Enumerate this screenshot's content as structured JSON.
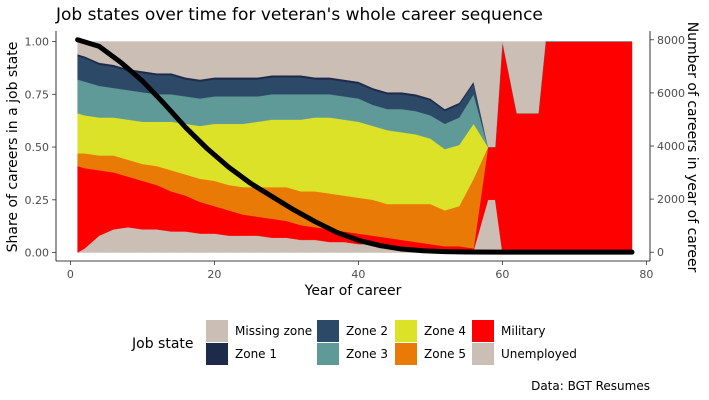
{
  "chart_data": {
    "type": "area",
    "title": "Job states over time for veteran's whole career sequence",
    "xlabel": "Year of career",
    "ylabel": "Share of careers in a job state",
    "y2label": "Number of careers in year of career",
    "caption": "Data: BGT Resumes",
    "xlim": [
      -2,
      80.5
    ],
    "ylim": [
      -0.04,
      1.05
    ],
    "y2lim": [
      -330,
      8330
    ],
    "x_ticks": [
      0,
      20,
      40,
      60,
      80
    ],
    "y_ticks": [
      0.0,
      0.25,
      0.5,
      0.75,
      1.0
    ],
    "y_tick_labels": [
      "0.00",
      "0.25",
      "0.50",
      "0.75",
      "1.00"
    ],
    "y2_ticks": [
      0,
      2000,
      4000,
      6000,
      8000
    ],
    "grid": false,
    "legend_position": "bottom",
    "legend": {
      "title": "Job state",
      "entries": [
        {
          "label": "Missing zone",
          "color": "#cbbfb5"
        },
        {
          "label": "Zone 1",
          "color": "#1e2a4a"
        },
        {
          "label": "Zone 2",
          "color": "#2c4a68"
        },
        {
          "label": "Zone 3",
          "color": "#5f9a99"
        },
        {
          "label": "Zone 4",
          "color": "#dbe228"
        },
        {
          "label": "Zone 5",
          "color": "#e87a05"
        },
        {
          "label": "Military",
          "color": "#ff0000"
        },
        {
          "label": "Unemployed",
          "color": "#cbbfb5"
        }
      ]
    },
    "x": [
      1,
      2,
      4,
      6,
      8,
      10,
      12,
      14,
      16,
      18,
      20,
      22,
      24,
      26,
      28,
      30,
      32,
      34,
      36,
      38,
      40,
      42,
      44,
      46,
      48,
      50,
      52,
      54,
      56,
      58,
      59,
      60,
      62,
      65,
      66,
      70,
      75,
      78
    ],
    "stacked_series": [
      {
        "name": "Unemployed",
        "color": "#cbbfb5",
        "values": [
          0.0,
          0.02,
          0.08,
          0.11,
          0.12,
          0.11,
          0.11,
          0.1,
          0.1,
          0.09,
          0.09,
          0.08,
          0.08,
          0.08,
          0.07,
          0.07,
          0.06,
          0.06,
          0.05,
          0.05,
          0.04,
          0.04,
          0.03,
          0.03,
          0.02,
          0.02,
          0.01,
          0.01,
          0.01,
          0.25,
          0.25,
          0.0,
          0.0,
          0.0,
          0.0,
          0.0,
          0.0,
          0.0
        ]
      },
      {
        "name": "Military",
        "color": "#ff0000",
        "values": [
          0.41,
          0.38,
          0.31,
          0.27,
          0.24,
          0.23,
          0.21,
          0.19,
          0.17,
          0.15,
          0.13,
          0.12,
          0.1,
          0.09,
          0.09,
          0.08,
          0.07,
          0.06,
          0.06,
          0.05,
          0.05,
          0.04,
          0.04,
          0.03,
          0.03,
          0.02,
          0.02,
          0.02,
          0.01,
          0.25,
          0.25,
          1.0,
          0.66,
          0.66,
          1.0,
          1.0,
          1.0,
          1.0
        ]
      },
      {
        "name": "Zone 5",
        "color": "#e87a05",
        "values": [
          0.06,
          0.07,
          0.07,
          0.08,
          0.08,
          0.08,
          0.09,
          0.1,
          0.1,
          0.11,
          0.12,
          0.12,
          0.13,
          0.14,
          0.15,
          0.16,
          0.16,
          0.17,
          0.17,
          0.17,
          0.17,
          0.17,
          0.16,
          0.17,
          0.18,
          0.19,
          0.17,
          0.19,
          0.33,
          0.0,
          0.0,
          0.0,
          0.0,
          0.0,
          0.0,
          0.0,
          0.0,
          0.0
        ]
      },
      {
        "name": "Zone 4",
        "color": "#dbe228",
        "values": [
          0.19,
          0.18,
          0.18,
          0.18,
          0.19,
          0.2,
          0.21,
          0.23,
          0.24,
          0.25,
          0.27,
          0.29,
          0.3,
          0.31,
          0.32,
          0.32,
          0.34,
          0.35,
          0.36,
          0.36,
          0.36,
          0.35,
          0.35,
          0.34,
          0.33,
          0.31,
          0.29,
          0.29,
          0.26,
          0.0,
          0.0,
          0.0,
          0.0,
          0.0,
          0.0,
          0.0,
          0.0,
          0.0
        ]
      },
      {
        "name": "Zone 3",
        "color": "#5f9a99",
        "values": [
          0.16,
          0.16,
          0.15,
          0.14,
          0.14,
          0.14,
          0.13,
          0.13,
          0.13,
          0.13,
          0.13,
          0.13,
          0.13,
          0.12,
          0.12,
          0.12,
          0.12,
          0.11,
          0.11,
          0.11,
          0.11,
          0.1,
          0.1,
          0.11,
          0.11,
          0.11,
          0.12,
          0.13,
          0.14,
          0.0,
          0.0,
          0.0,
          0.0,
          0.0,
          0.0,
          0.0,
          0.0,
          0.0
        ]
      },
      {
        "name": "Zone 2",
        "color": "#2c4a68",
        "values": [
          0.11,
          0.11,
          0.1,
          0.1,
          0.09,
          0.09,
          0.09,
          0.09,
          0.08,
          0.08,
          0.08,
          0.08,
          0.08,
          0.08,
          0.08,
          0.08,
          0.08,
          0.07,
          0.07,
          0.07,
          0.07,
          0.07,
          0.07,
          0.07,
          0.07,
          0.07,
          0.06,
          0.06,
          0.05,
          0.0,
          0.0,
          0.0,
          0.0,
          0.0,
          0.0,
          0.0,
          0.0,
          0.0
        ]
      },
      {
        "name": "Zone 1",
        "color": "#1e2a4a",
        "values": [
          0.01,
          0.01,
          0.01,
          0.01,
          0.01,
          0.01,
          0.01,
          0.01,
          0.01,
          0.01,
          0.01,
          0.01,
          0.01,
          0.01,
          0.01,
          0.01,
          0.01,
          0.01,
          0.01,
          0.01,
          0.01,
          0.01,
          0.01,
          0.01,
          0.01,
          0.01,
          0.01,
          0.01,
          0.01,
          0.0,
          0.0,
          0.0,
          0.0,
          0.0,
          0.0,
          0.0,
          0.0,
          0.0
        ]
      },
      {
        "name": "Missing zone",
        "color": "#cbbfb5",
        "values": [
          0.06,
          0.07,
          0.1,
          0.11,
          0.13,
          0.14,
          0.15,
          0.15,
          0.17,
          0.18,
          0.17,
          0.17,
          0.17,
          0.17,
          0.16,
          0.16,
          0.16,
          0.17,
          0.17,
          0.18,
          0.19,
          0.22,
          0.24,
          0.24,
          0.25,
          0.27,
          0.32,
          0.29,
          0.19,
          0.5,
          0.5,
          0.0,
          0.34,
          0.34,
          0.0,
          0.0,
          0.0,
          0.0
        ]
      }
    ],
    "line_series": {
      "name": "Number of careers",
      "axis": "right",
      "color": "#000000",
      "x": [
        1,
        4,
        7,
        10,
        13,
        16,
        19,
        22,
        25,
        28,
        31,
        34,
        37,
        40,
        43,
        46,
        49,
        52,
        55,
        60,
        70,
        78
      ],
      "values": [
        8000,
        7750,
        7150,
        6450,
        5600,
        4700,
        3900,
        3200,
        2600,
        2100,
        1600,
        1150,
        750,
        450,
        250,
        120,
        55,
        25,
        10,
        5,
        3,
        2
      ]
    }
  }
}
